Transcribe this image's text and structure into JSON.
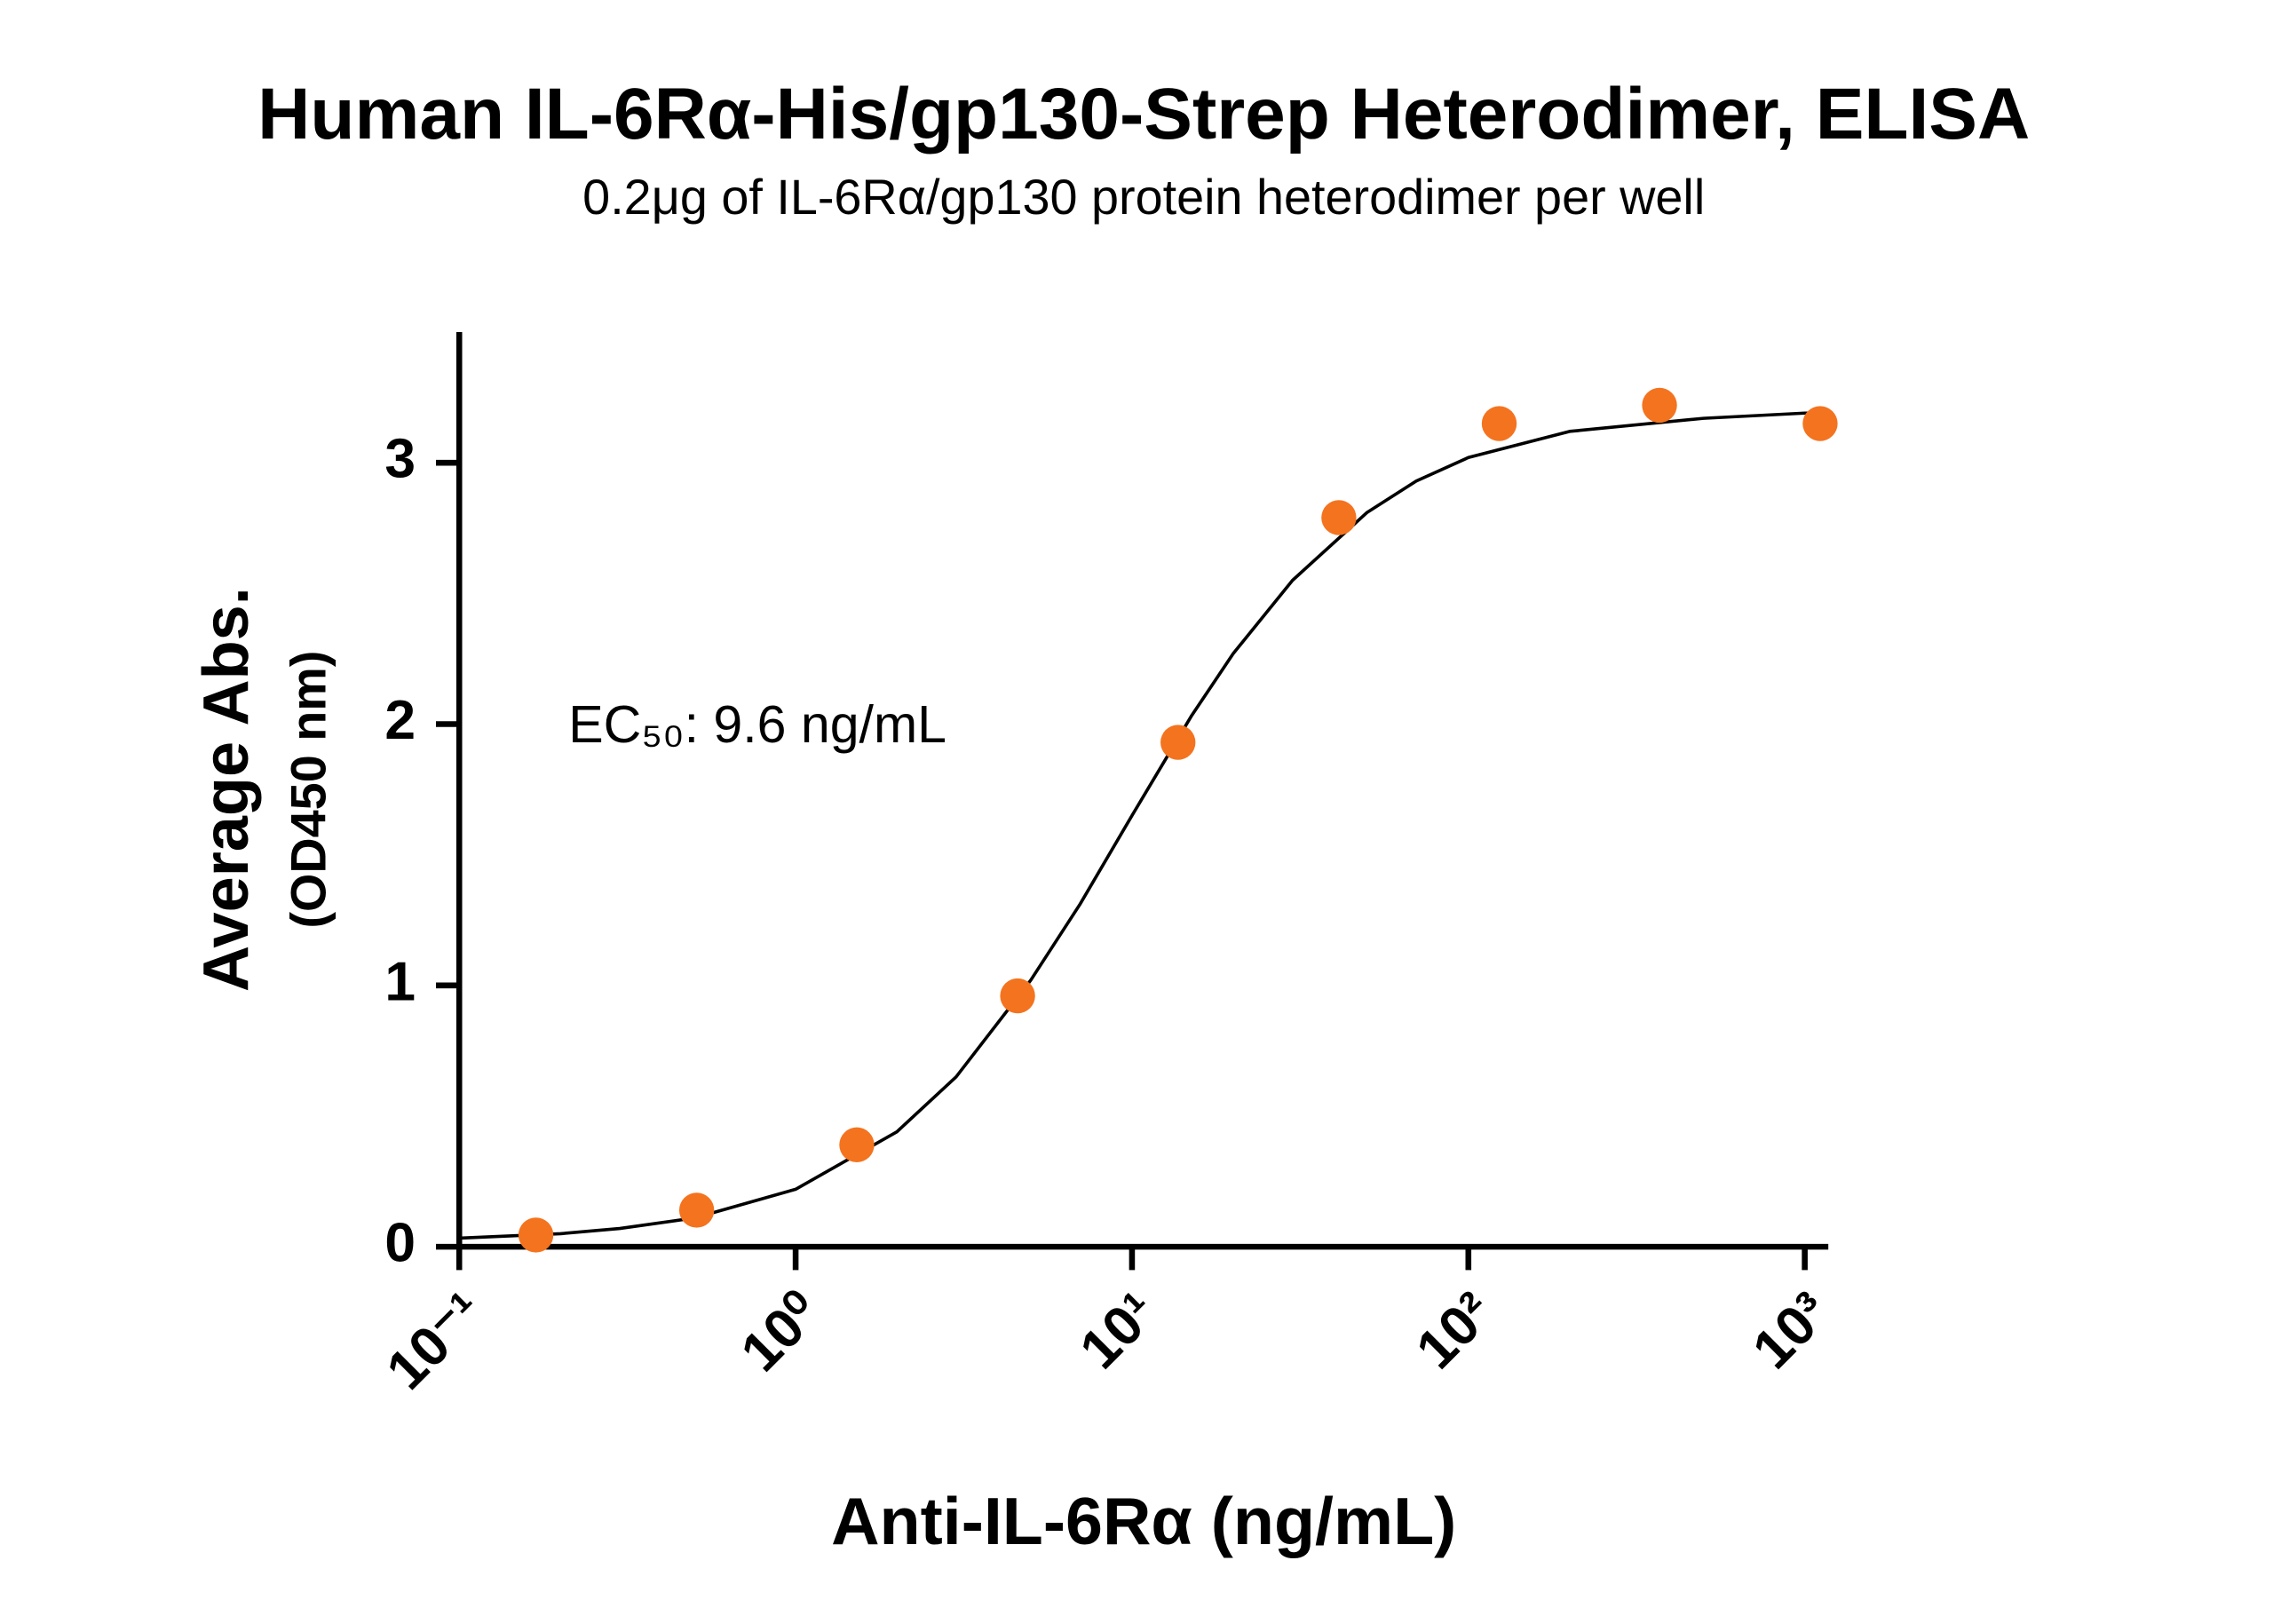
{
  "chart_data": {
    "type": "scatter",
    "title": "Human IL-6Rα-His/gp130-Strep Heterodimer, ELISA",
    "subtitle": "0.2μg of IL-6Rα/gp130 protein heterodimer per well",
    "xlabel": "Anti-IL-6Rα (ng/mL)",
    "ylabel": [
      "Average Abs.",
      "(OD450 nm)"
    ],
    "annotation": "EC₅₀: 9.6 ng/mL",
    "x": [
      0.169,
      0.508,
      1.52,
      4.57,
      13.7,
      41.2,
      123.5,
      370,
      1111
    ],
    "values": [
      0.045,
      0.14,
      0.39,
      0.96,
      1.93,
      2.79,
      3.15,
      3.22,
      3.15
    ],
    "color": "#f4731f",
    "curve": {
      "x": [
        0.1,
        0.2,
        0.3,
        0.5,
        1,
        2,
        3,
        5,
        7,
        10,
        15,
        20,
        30,
        50,
        70,
        100,
        200,
        500,
        1000,
        1175
      ],
      "values": [
        0.033,
        0.05,
        0.07,
        0.11,
        0.22,
        0.44,
        0.65,
        1.02,
        1.31,
        1.65,
        2.03,
        2.27,
        2.55,
        2.81,
        2.93,
        3.02,
        3.12,
        3.17,
        3.19,
        3.19
      ],
      "color": "#000000"
    },
    "xscale": "log",
    "xlim": [
      0.1,
      1175
    ],
    "xticks": [
      {
        "value": 0.1,
        "label": "10⁻¹"
      },
      {
        "value": 1,
        "label": "10⁰"
      },
      {
        "value": 10,
        "label": "10¹"
      },
      {
        "value": 100,
        "label": "10²"
      },
      {
        "value": 1000,
        "label": "10³"
      }
    ],
    "ylim": [
      0,
      3.5
    ],
    "yticks": [
      0,
      1,
      2,
      3
    ],
    "grid": false
  }
}
